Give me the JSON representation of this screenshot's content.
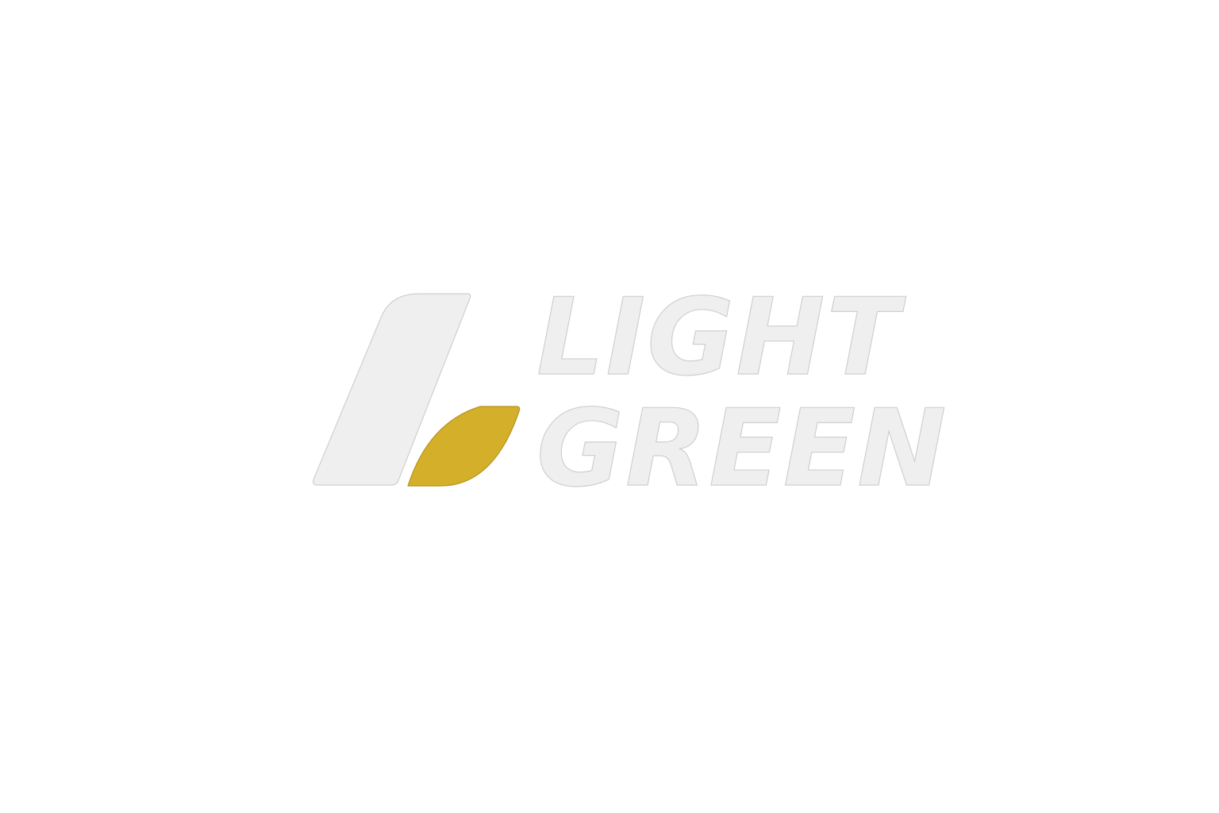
{
  "logo": {
    "line1": "LIGHT",
    "line2": "GREEN",
    "colors": {
      "light_shape": "#efefef",
      "accent_leaf": "#d4af2a",
      "outline": "#cfcfcf",
      "background": "#ffffff"
    }
  }
}
